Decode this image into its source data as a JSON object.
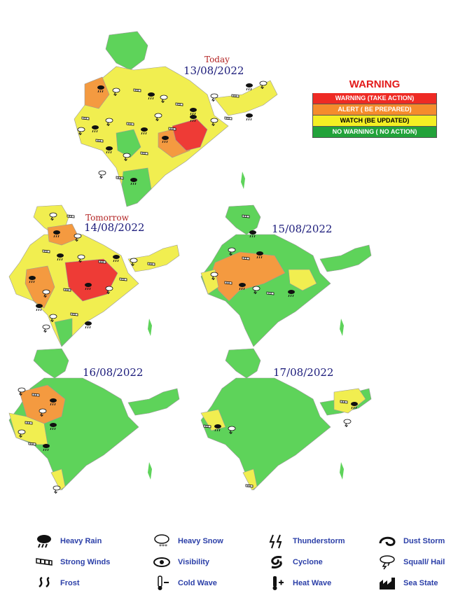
{
  "maps": [
    {
      "day_label": "Today",
      "date": "13/08/2022"
    },
    {
      "day_label": "Tomorrow",
      "date": "14/08/2022"
    },
    {
      "day_label": "",
      "date": "15/08/2022"
    },
    {
      "day_label": "",
      "date": "16/08/2022"
    },
    {
      "day_label": "",
      "date": "17/08/2022"
    }
  ],
  "legend": {
    "title": "WARNING",
    "items": [
      {
        "label": "WARNING (TAKE ACTION)",
        "color": "#ee2a24",
        "text_color": "#ffffff"
      },
      {
        "label": "ALERT ( BE PREPARED)",
        "color": "#f58c2c",
        "text_color": "#ffffff"
      },
      {
        "label": "WATCH (BE UPDATED)",
        "color": "#f4ef23",
        "text_color": "#000000"
      },
      {
        "label": "NO WARNING ( NO ACTION)",
        "color": "#22a23a",
        "text_color": "#ffffff"
      }
    ]
  },
  "weather_key": [
    {
      "label": "Heavy Rain",
      "icon": "heavy-rain-icon"
    },
    {
      "label": "Heavy Snow",
      "icon": "heavy-snow-icon"
    },
    {
      "label": "Thunderstorm",
      "icon": "thunderstorm-icon"
    },
    {
      "label": "Dust Storm",
      "icon": "dust-storm-icon"
    },
    {
      "label": "Strong Winds",
      "icon": "strong-winds-icon"
    },
    {
      "label": "Visibility",
      "icon": "visibility-icon"
    },
    {
      "label": "Cyclone",
      "icon": "cyclone-icon"
    },
    {
      "label": "Squall/ Hail",
      "icon": "squall-hail-icon"
    },
    {
      "label": "Frost",
      "icon": "frost-icon"
    },
    {
      "label": "Cold Wave",
      "icon": "cold-wave-icon"
    },
    {
      "label": "Heat Wave",
      "icon": "heat-wave-icon"
    },
    {
      "label": "Sea State",
      "icon": "sea-state-icon"
    }
  ],
  "colors": {
    "green": "#5ed35a",
    "yellow": "#f1ee50",
    "orange": "#f49a40",
    "red": "#ee3b36"
  }
}
